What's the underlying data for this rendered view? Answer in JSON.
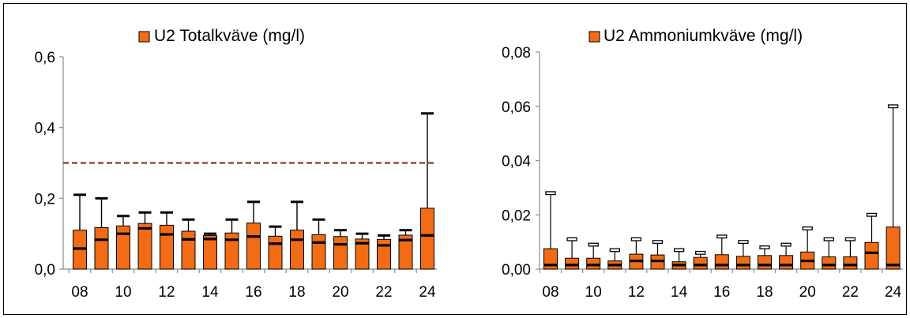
{
  "chart_data": [
    {
      "type": "bar",
      "legend": "U2 Totalkväve (mg/l)",
      "legend_position": "top",
      "categories": [
        "08",
        "09",
        "10",
        "11",
        "12",
        "13",
        "14",
        "15",
        "16",
        "17",
        "18",
        "19",
        "20",
        "21",
        "22",
        "23",
        "24"
      ],
      "x_tick_labels": [
        "08",
        "10",
        "12",
        "14",
        "16",
        "18",
        "20",
        "22",
        "24"
      ],
      "series": [
        {
          "name": "U2 Totalkväve (mg/l)",
          "values": [
            0.11,
            0.117,
            0.122,
            0.129,
            0.124,
            0.107,
            0.095,
            0.102,
            0.13,
            0.093,
            0.11,
            0.097,
            0.092,
            0.085,
            0.084,
            0.096,
            0.172
          ],
          "min": [
            0.058,
            0.083,
            0.1,
            0.115,
            0.098,
            0.084,
            0.085,
            0.083,
            0.092,
            0.072,
            0.083,
            0.075,
            0.07,
            0.073,
            0.067,
            0.082,
            0.095
          ],
          "max": [
            0.21,
            0.2,
            0.15,
            0.16,
            0.16,
            0.14,
            0.1,
            0.14,
            0.19,
            0.12,
            0.19,
            0.14,
            0.11,
            0.1,
            0.095,
            0.11,
            0.44
          ]
        }
      ],
      "reference_line": {
        "value": 0.3,
        "color": "#8b3a0e",
        "style": "dashed"
      },
      "y_tick_labels": [
        "0,0",
        "0,2",
        "0,4",
        "0,6"
      ],
      "y_ticks": [
        0,
        0.2,
        0.4,
        0.6
      ],
      "ylim": [
        0,
        0.6
      ],
      "grid": false
    },
    {
      "type": "bar",
      "legend": "U2 Ammoniumkväve (mg/l)",
      "legend_position": "top",
      "categories": [
        "08",
        "09",
        "10",
        "11",
        "12",
        "13",
        "14",
        "15",
        "16",
        "17",
        "18",
        "19",
        "20",
        "21",
        "22",
        "23",
        "24"
      ],
      "x_tick_labels": [
        "08",
        "10",
        "12",
        "14",
        "16",
        "18",
        "20",
        "22",
        "24"
      ],
      "series": [
        {
          "name": "U2 Ammoniumkväve (mg/l)",
          "values": [
            0.0075,
            0.004,
            0.004,
            0.003,
            0.0055,
            0.0052,
            0.0027,
            0.0043,
            0.0053,
            0.0047,
            0.005,
            0.005,
            0.0063,
            0.0045,
            0.0045,
            0.0098,
            0.0155
          ],
          "min": [
            0.0015,
            0.0015,
            0.0015,
            0.0015,
            0.003,
            0.003,
            0.0015,
            0.0015,
            0.0015,
            0.0015,
            0.0015,
            0.0015,
            0.003,
            0.0015,
            0.0015,
            0.006,
            0.0015
          ],
          "max": [
            0.028,
            0.011,
            0.009,
            0.007,
            0.011,
            0.01,
            0.007,
            0.006,
            0.012,
            0.01,
            0.008,
            0.009,
            0.015,
            0.011,
            0.011,
            0.02,
            0.06
          ]
        }
      ],
      "y_tick_labels": [
        "0,00",
        "0,02",
        "0,04",
        "0,06",
        "0,08"
      ],
      "y_ticks": [
        0,
        0.02,
        0.04,
        0.06,
        0.08
      ],
      "ylim": [
        0,
        0.08
      ],
      "grid": false
    }
  ],
  "colors": {
    "bar_fill": "#f26b15",
    "bar_stroke": "#000000",
    "axis": "#8c8c8c",
    "reference_line": "#8b3a0e"
  }
}
